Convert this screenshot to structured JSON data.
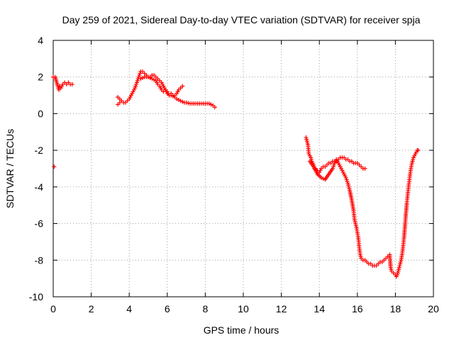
{
  "chart_data": {
    "type": "scatter",
    "title": "Day 259 of 2021, Sidereal Day-to-day VTEC variation (SDTVAR) for receiver spja",
    "xlabel": "GPS time / hours",
    "ylabel": "SDTVAR / TECUs",
    "xlim": [
      0,
      20
    ],
    "ylim": [
      -10,
      4
    ],
    "xticks": [
      "0",
      "2",
      "4",
      "6",
      "8",
      "10",
      "12",
      "14",
      "16",
      "18",
      "20"
    ],
    "yticks": [
      "4",
      "2",
      "0",
      "-2",
      "-4",
      "-6",
      "-8",
      "-10"
    ],
    "grid": true,
    "marker": "+",
    "color": "#ff0000",
    "series": [
      {
        "name": "SDTVAR",
        "x": [
          0.0,
          0.1,
          0.3,
          0.35,
          0.4,
          0.5,
          0.6,
          0.7,
          0.8,
          0.9,
          1.0,
          0.05,
          3.4,
          3.5,
          3.6,
          3.7,
          3.8,
          3.9,
          4.0,
          4.1,
          4.2,
          4.3,
          4.4,
          4.5,
          4.6,
          4.7,
          4.8,
          4.9,
          5.0,
          5.1,
          5.2,
          5.3,
          5.4,
          5.5,
          5.6,
          5.7,
          5.8,
          5.9,
          6.0,
          6.1,
          6.2,
          6.4,
          6.5,
          6.7,
          6.9,
          7.0,
          7.2,
          7.4,
          7.6,
          7.8,
          8.0,
          8.2,
          8.4,
          8.5,
          4.6,
          4.8,
          5.0,
          5.2,
          5.4,
          5.5,
          5.6,
          5.7,
          5.8,
          5.9,
          6.0,
          6.1,
          6.2,
          6.3,
          6.4,
          6.5,
          6.6,
          6.7,
          6.8,
          3.4,
          3.5,
          13.3,
          13.35,
          13.4,
          13.45,
          13.5,
          13.55,
          13.6,
          13.65,
          13.7,
          13.75,
          13.8,
          13.85,
          13.9,
          14.0,
          14.1,
          14.2,
          14.3,
          14.4,
          14.5,
          14.6,
          14.7,
          14.8,
          14.9,
          15.0,
          15.1,
          15.2,
          15.3,
          15.4,
          15.5,
          15.6,
          15.7,
          15.8,
          15.9,
          16.0,
          16.1,
          16.2,
          16.3,
          16.4,
          13.5,
          13.7,
          13.9,
          14.1,
          14.3,
          14.5,
          14.7,
          14.8,
          14.9,
          15.0,
          15.1,
          15.2,
          15.3,
          15.4,
          15.5,
          15.6,
          15.7,
          15.8,
          15.85,
          15.9,
          15.95,
          16.0,
          16.05,
          16.1,
          16.15,
          16.2,
          16.3,
          16.4,
          16.5,
          16.6,
          16.7,
          16.8,
          16.9,
          17.0,
          17.1,
          17.2,
          17.3,
          17.4,
          17.5,
          17.6,
          17.7,
          17.75,
          17.8,
          17.9,
          18.0,
          18.05,
          18.1,
          18.15,
          18.2,
          18.25,
          18.3,
          18.35,
          18.4,
          18.45,
          18.5,
          18.55,
          18.6,
          18.65,
          18.7,
          18.75,
          18.8,
          18.85,
          18.9,
          18.95,
          19.0,
          19.05,
          19.1,
          19.15,
          19.2
        ],
        "y": [
          2.0,
          2.0,
          1.3,
          1.5,
          1.4,
          1.6,
          1.7,
          1.6,
          1.7,
          1.6,
          1.6,
          -2.9,
          0.9,
          0.8,
          0.7,
          0.6,
          0.6,
          0.7,
          0.8,
          1.0,
          1.2,
          1.4,
          1.7,
          2.0,
          2.3,
          2.3,
          2.2,
          2.1,
          2.0,
          2.0,
          2.1,
          2.1,
          2.0,
          1.9,
          1.8,
          1.7,
          1.5,
          1.3,
          1.1,
          1.0,
          1.0,
          0.9,
          0.8,
          0.7,
          0.6,
          0.6,
          0.55,
          0.55,
          0.55,
          0.55,
          0.55,
          0.55,
          0.45,
          0.35,
          1.9,
          2.0,
          2.0,
          1.9,
          1.8,
          1.6,
          1.5,
          1.3,
          1.2,
          1.3,
          1.2,
          1.0,
          1.1,
          1.0,
          1.0,
          1.1,
          1.3,
          1.4,
          1.5,
          0.5,
          0.6,
          -1.3,
          -1.5,
          -1.7,
          -2.2,
          -2.3,
          -2.4,
          -2.6,
          -2.7,
          -2.8,
          -3.0,
          -3.0,
          -3.1,
          -3.1,
          -3.2,
          -3.0,
          -2.9,
          -2.9,
          -2.8,
          -2.7,
          -2.7,
          -2.6,
          -2.6,
          -2.6,
          -2.5,
          -2.4,
          -2.4,
          -2.4,
          -2.5,
          -2.5,
          -2.6,
          -2.6,
          -2.7,
          -2.7,
          -2.7,
          -2.8,
          -2.9,
          -3.0,
          -3.0,
          -2.6,
          -2.9,
          -3.3,
          -3.5,
          -3.6,
          -3.3,
          -3.0,
          -2.7,
          -2.5,
          -2.7,
          -2.9,
          -3.1,
          -3.3,
          -3.5,
          -3.8,
          -4.2,
          -4.7,
          -5.3,
          -5.8,
          -6.0,
          -6.2,
          -6.5,
          -6.8,
          -7.3,
          -7.7,
          -7.9,
          -8.0,
          -8.0,
          -8.1,
          -8.2,
          -8.2,
          -8.3,
          -8.3,
          -8.3,
          -8.2,
          -8.1,
          -8.1,
          -8.0,
          -7.9,
          -7.8,
          -7.7,
          -8.4,
          -8.6,
          -8.7,
          -8.8,
          -8.9,
          -8.8,
          -8.6,
          -8.4,
          -8.2,
          -8.0,
          -7.7,
          -7.3,
          -6.8,
          -6.2,
          -5.5,
          -4.9,
          -4.4,
          -3.9,
          -3.5,
          -3.1,
          -2.8,
          -2.6,
          -2.4,
          -2.3,
          -2.2,
          -2.1,
          -2.0,
          -2.0
        ]
      }
    ]
  }
}
